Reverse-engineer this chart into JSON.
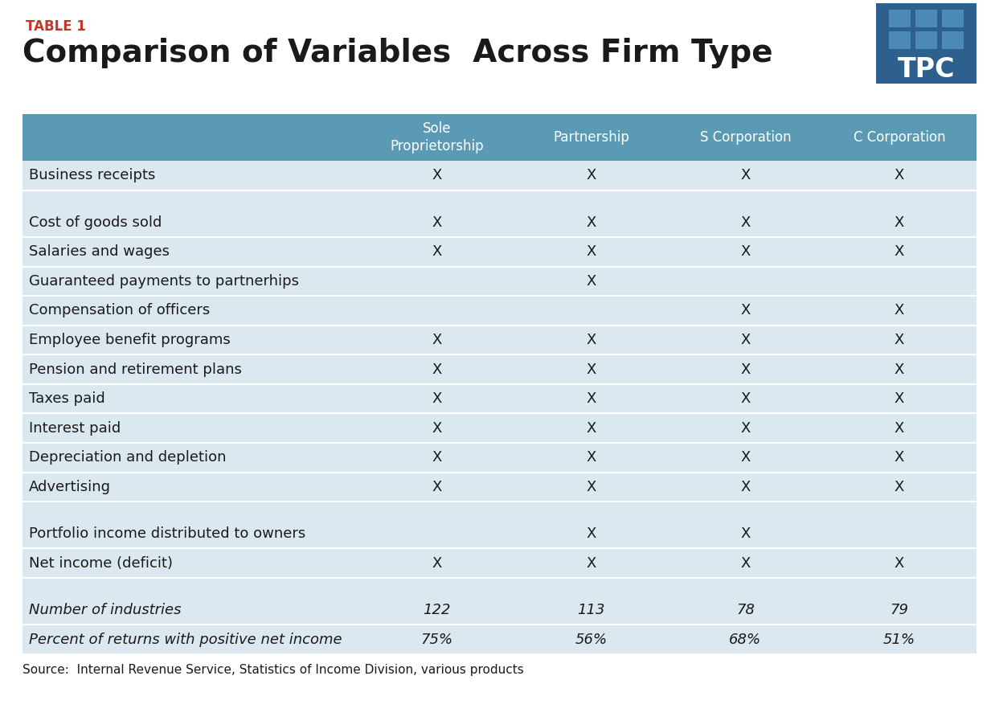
{
  "table_label": "TABLE 1",
  "title": "Comparison of Variables  Across Firm Type",
  "header_bg": "#5b9ab5",
  "header_text_color": "#ffffff",
  "row_bg_light": "#dce8f0",
  "row_bg_white": "#ffffff",
  "col_headers": [
    "Sole\nProprietorship",
    "Partnership",
    "S Corporation",
    "C Corporation"
  ],
  "rows": [
    {
      "label": "Business receipts",
      "values": [
        "X",
        "X",
        "X",
        "X"
      ],
      "italic": false,
      "empty": false,
      "separator_after": true
    },
    {
      "label": "",
      "values": [
        "",
        "",
        "",
        ""
      ],
      "italic": false,
      "empty": true,
      "separator_after": false
    },
    {
      "label": "Cost of goods sold",
      "values": [
        "X",
        "X",
        "X",
        "X"
      ],
      "italic": false,
      "empty": false,
      "separator_after": false
    },
    {
      "label": "Salaries and wages",
      "values": [
        "X",
        "X",
        "X",
        "X"
      ],
      "italic": false,
      "empty": false,
      "separator_after": false
    },
    {
      "label": "Guaranteed payments to partnerhips",
      "values": [
        "",
        "X",
        "",
        ""
      ],
      "italic": false,
      "empty": false,
      "separator_after": false
    },
    {
      "label": "Compensation of officers",
      "values": [
        "",
        "",
        "X",
        "X"
      ],
      "italic": false,
      "empty": false,
      "separator_after": false
    },
    {
      "label": "Employee benefit programs",
      "values": [
        "X",
        "X",
        "X",
        "X"
      ],
      "italic": false,
      "empty": false,
      "separator_after": false
    },
    {
      "label": "Pension and retirement plans",
      "values": [
        "X",
        "X",
        "X",
        "X"
      ],
      "italic": false,
      "empty": false,
      "separator_after": false
    },
    {
      "label": "Taxes paid",
      "values": [
        "X",
        "X",
        "X",
        "X"
      ],
      "italic": false,
      "empty": false,
      "separator_after": false
    },
    {
      "label": "Interest paid",
      "values": [
        "X",
        "X",
        "X",
        "X"
      ],
      "italic": false,
      "empty": false,
      "separator_after": false
    },
    {
      "label": "Depreciation and depletion",
      "values": [
        "X",
        "X",
        "X",
        "X"
      ],
      "italic": false,
      "empty": false,
      "separator_after": false
    },
    {
      "label": "Advertising",
      "values": [
        "X",
        "X",
        "X",
        "X"
      ],
      "italic": false,
      "empty": false,
      "separator_after": true
    },
    {
      "label": "",
      "values": [
        "",
        "",
        "",
        ""
      ],
      "italic": false,
      "empty": true,
      "separator_after": false
    },
    {
      "label": "Portfolio income distributed to owners",
      "values": [
        "",
        "X",
        "X",
        ""
      ],
      "italic": false,
      "empty": false,
      "separator_after": false
    },
    {
      "label": "Net income (deficit)",
      "values": [
        "X",
        "X",
        "X",
        "X"
      ],
      "italic": false,
      "empty": false,
      "separator_after": true
    },
    {
      "label": "",
      "values": [
        "",
        "",
        "",
        ""
      ],
      "italic": false,
      "empty": true,
      "separator_after": false
    },
    {
      "label": "Number of industries",
      "values": [
        "122",
        "113",
        "78",
        "79"
      ],
      "italic": true,
      "empty": false,
      "separator_after": false
    },
    {
      "label": "Percent of returns with positive net income",
      "values": [
        "75%",
        "56%",
        "68%",
        "51%"
      ],
      "italic": true,
      "empty": false,
      "separator_after": false
    }
  ],
  "source_text": "Source:  Internal Revenue Service, Statistics of Income Division, various products",
  "tpc_logo_colors": {
    "blue_dark": "#2e608e",
    "blue_mid": "#4a8ab5",
    "white": "#ffffff"
  },
  "table_label_color": "#c0392b",
  "title_color": "#1a1a1a",
  "title_fontsize": 28,
  "table_label_fontsize": 12,
  "label_fontsize": 13,
  "header_fontsize": 12,
  "source_fontsize": 11
}
